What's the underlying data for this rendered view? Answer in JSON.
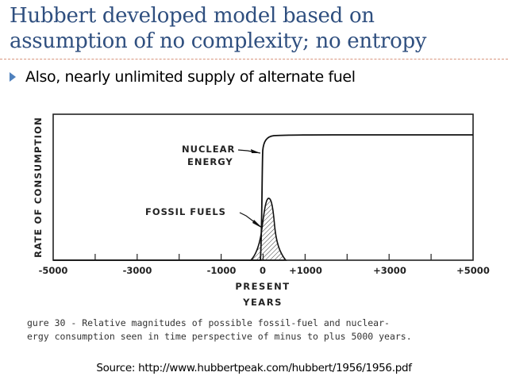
{
  "slide": {
    "title_line1": "Hubbert developed model based on",
    "title_line2": "assumption of no complexity; no entropy",
    "bullet_icon": "triangle-right-icon",
    "bullet_text": "Also, nearly unlimited supply of alternate fuel",
    "caption_line1": "gure 30 - Relative magnitudes of possible fossil-fuel and nuclear-",
    "caption_line2": "ergy consumption seen in time perspective of minus to plus 5000 years.",
    "source": "Source: http://www.hubbertpeak.com/hubbert/1956/1956.pdf",
    "colors": {
      "title": "#2f4f7f",
      "bullet": "#4f81bd",
      "divider": "#d9967e"
    }
  },
  "chart_data": {
    "type": "line",
    "title": "",
    "xlabel": "YEARS",
    "xlabel_sub": "PRESENT",
    "ylabel": "RATE OF CONSUMPTION",
    "xlim": [
      -5000,
      5000
    ],
    "ylim": [
      0,
      1
    ],
    "grid": false,
    "x_ticks": [
      -5000,
      -4000,
      -3000,
      -2000,
      -1000,
      0,
      1000,
      2000,
      3000,
      4000,
      5000
    ],
    "x_tick_labels": {
      "-5000": "-5000",
      "-3000": "-3000",
      "-1000": "-1000",
      "0": "0",
      "1000": "+1000",
      "3000": "+3000",
      "5000": "+5000"
    },
    "series": [
      {
        "name": "NUCLEAR ENERGY",
        "x": [
          -5000,
          -50,
          0,
          20,
          100,
          300,
          1000,
          3000,
          5000
        ],
        "y": [
          0,
          0,
          0.5,
          0.78,
          0.83,
          0.855,
          0.86,
          0.86,
          0.86
        ]
      },
      {
        "name": "FOSSIL FUELS",
        "hatched": true,
        "x": [
          -300,
          -150,
          -50,
          0,
          50,
          100,
          150,
          200,
          300,
          450
        ],
        "y": [
          0,
          0.06,
          0.2,
          0.35,
          0.55,
          0.43,
          0.25,
          0.12,
          0.03,
          0
        ]
      }
    ],
    "annotations": [
      {
        "text": "NUCLEAR",
        "line2": "ENERGY",
        "target": "NUCLEAR ENERGY"
      },
      {
        "text": "FOSSIL FUELS",
        "target": "FOSSIL FUELS"
      }
    ]
  }
}
